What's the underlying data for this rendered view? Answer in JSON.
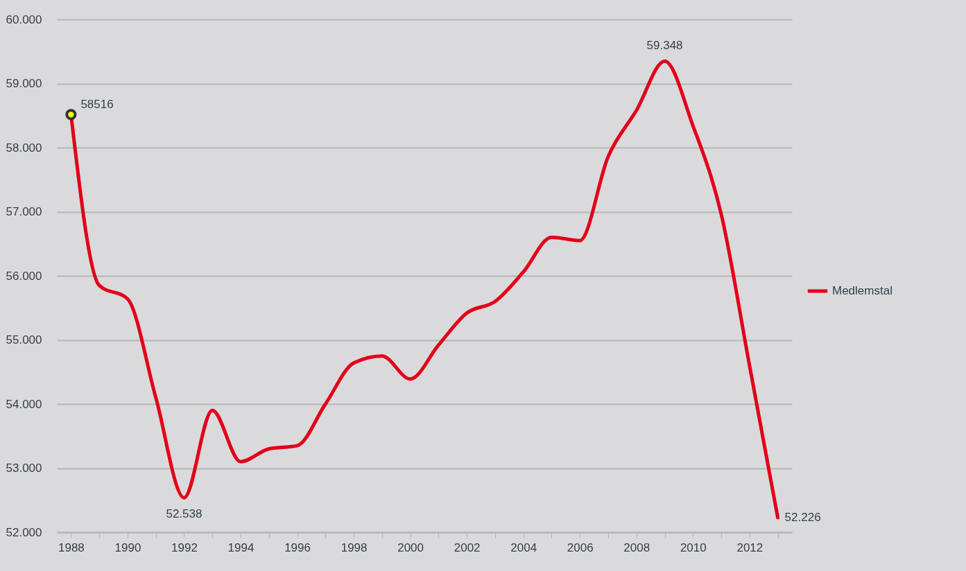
{
  "chart_data": {
    "type": "line",
    "categories": [
      "1988",
      null,
      "1990",
      null,
      "1992",
      null,
      "1994",
      null,
      "1996",
      null,
      "1998",
      null,
      "2000",
      null,
      "2002",
      null,
      "2004",
      null,
      "2006",
      null,
      "2008",
      null,
      "2010",
      null,
      "2012",
      null
    ],
    "series": [
      {
        "name": "Medlemstal",
        "color": "#e2001a",
        "values": [
          58516,
          55850,
          55640,
          54100,
          52538,
          53900,
          53100,
          53300,
          53350,
          54000,
          54640,
          54750,
          54390,
          54920,
          55420,
          55600,
          56060,
          56600,
          56550,
          57860,
          58580,
          59348,
          58340,
          56960,
          54600,
          52226
        ],
        "value_labels": [
          "58516",
          null,
          null,
          null,
          "52.538",
          null,
          null,
          null,
          null,
          null,
          null,
          null,
          null,
          null,
          null,
          null,
          null,
          null,
          null,
          null,
          null,
          "59.348",
          null,
          null,
          null,
          "52.226"
        ]
      },
      {
        "type": "scatter",
        "color": "#ffff00",
        "values": [
          58516,
          null,
          null,
          null,
          null,
          null,
          null,
          null,
          null,
          null,
          null,
          null,
          null,
          null,
          null,
          null,
          null,
          null,
          null,
          null,
          null,
          null,
          null,
          null,
          null,
          null
        ]
      }
    ],
    "ylim": [
      52000,
      60000
    ],
    "yticks": [
      {
        "value": 52000,
        "label": "52.000"
      },
      {
        "value": 53000,
        "label": "53.000"
      },
      {
        "value": 54000,
        "label": "54.000"
      },
      {
        "value": 55000,
        "label": "55.000"
      },
      {
        "value": 56000,
        "label": "56.000"
      },
      {
        "value": 57000,
        "label": "57.000"
      },
      {
        "value": 58000,
        "label": "58.000"
      },
      {
        "value": 59000,
        "label": "59.000"
      },
      {
        "value": 60000,
        "label": "60.000"
      }
    ],
    "grid": "y",
    "legend": "right"
  }
}
